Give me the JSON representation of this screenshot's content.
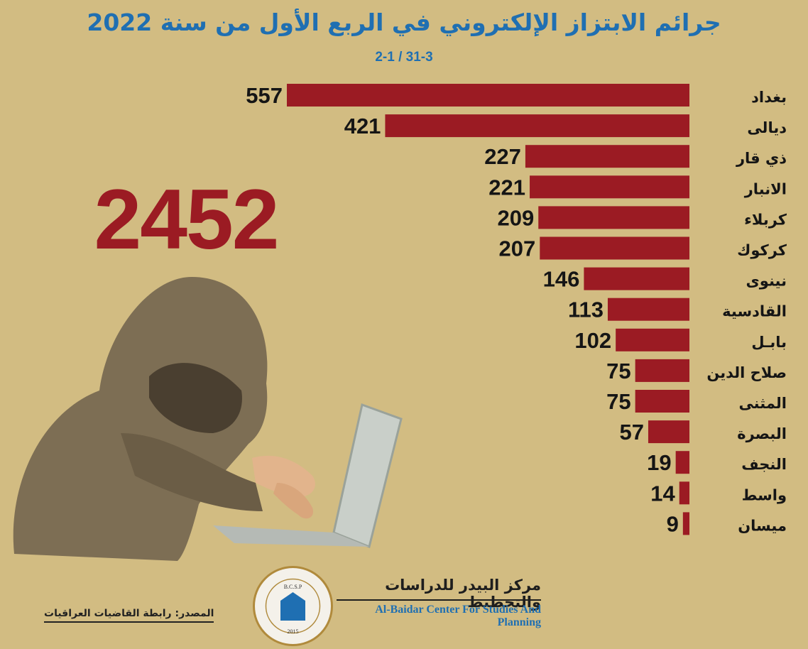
{
  "title": "جرائم الابتزاز الإلكتروني في الربع الأول من سنة 2022",
  "subtitle": "2-1 / 31-3",
  "total": "2452",
  "source": "المصدر: رابطة القاضيات العراقيات",
  "org": {
    "name_ar": "مركز البيدر للدراسات والتخطيط",
    "name_en": "Al-Baidar Center For Studies And Planning",
    "logo_abbr": "B.C.S.P",
    "logo_year": "2015"
  },
  "colors": {
    "bar": "#9b1b23",
    "title": "#1f6fb2",
    "background": "#d2bc82"
  },
  "chart_data": {
    "type": "bar",
    "orientation": "horizontal",
    "categories": [
      "بغداد",
      "ديالى",
      "ذي قار",
      "الانبار",
      "كربلاء",
      "كركوك",
      "نينوى",
      "القادسية",
      "بابـل",
      "صلاح الدين",
      "المثنى",
      "البصرة",
      "النجف",
      "واسط",
      "ميسان"
    ],
    "values": [
      557,
      421,
      227,
      221,
      209,
      207,
      146,
      113,
      102,
      75,
      75,
      57,
      19,
      14,
      9
    ],
    "xlim": [
      0,
      557
    ]
  }
}
